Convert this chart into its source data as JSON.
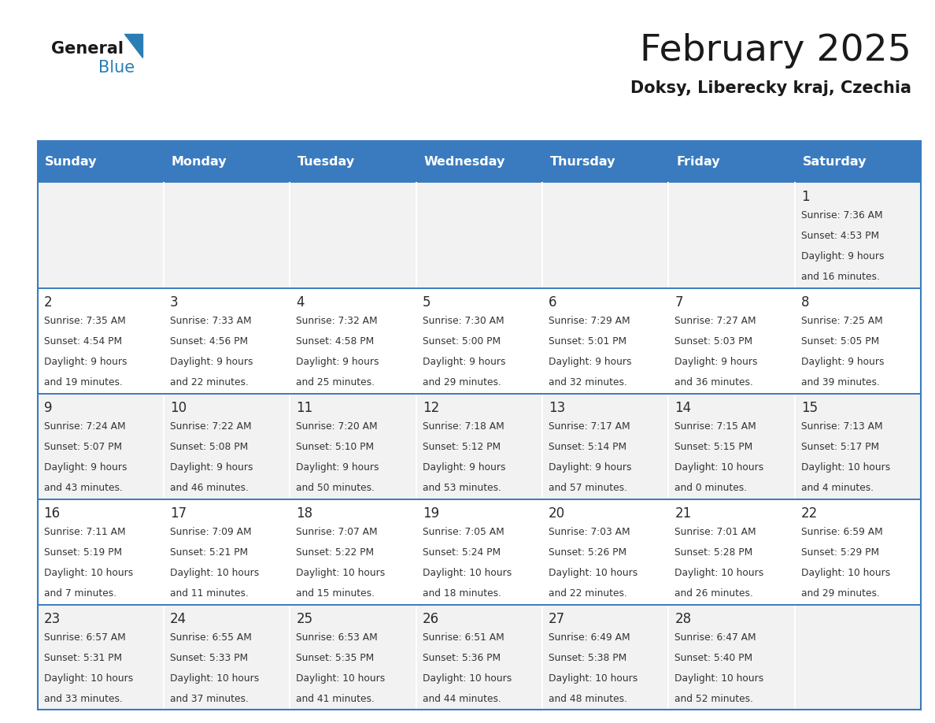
{
  "title": "February 2025",
  "subtitle": "Doksy, Liberecky kraj, Czechia",
  "header_color": "#3a7bbf",
  "header_text_color": "#ffffff",
  "days_of_week": [
    "Sunday",
    "Monday",
    "Tuesday",
    "Wednesday",
    "Thursday",
    "Friday",
    "Saturday"
  ],
  "bg_color": "#ffffff",
  "day_number_color": "#2a2a2a",
  "text_color": "#333333",
  "calendar_data": [
    [
      null,
      null,
      null,
      null,
      null,
      null,
      {
        "day": 1,
        "sunrise": "7:36 AM",
        "sunset": "4:53 PM",
        "daylight": "9 hours and 16 minutes."
      }
    ],
    [
      {
        "day": 2,
        "sunrise": "7:35 AM",
        "sunset": "4:54 PM",
        "daylight": "9 hours and 19 minutes."
      },
      {
        "day": 3,
        "sunrise": "7:33 AM",
        "sunset": "4:56 PM",
        "daylight": "9 hours and 22 minutes."
      },
      {
        "day": 4,
        "sunrise": "7:32 AM",
        "sunset": "4:58 PM",
        "daylight": "9 hours and 25 minutes."
      },
      {
        "day": 5,
        "sunrise": "7:30 AM",
        "sunset": "5:00 PM",
        "daylight": "9 hours and 29 minutes."
      },
      {
        "day": 6,
        "sunrise": "7:29 AM",
        "sunset": "5:01 PM",
        "daylight": "9 hours and 32 minutes."
      },
      {
        "day": 7,
        "sunrise": "7:27 AM",
        "sunset": "5:03 PM",
        "daylight": "9 hours and 36 minutes."
      },
      {
        "day": 8,
        "sunrise": "7:25 AM",
        "sunset": "5:05 PM",
        "daylight": "9 hours and 39 minutes."
      }
    ],
    [
      {
        "day": 9,
        "sunrise": "7:24 AM",
        "sunset": "5:07 PM",
        "daylight": "9 hours and 43 minutes."
      },
      {
        "day": 10,
        "sunrise": "7:22 AM",
        "sunset": "5:08 PM",
        "daylight": "9 hours and 46 minutes."
      },
      {
        "day": 11,
        "sunrise": "7:20 AM",
        "sunset": "5:10 PM",
        "daylight": "9 hours and 50 minutes."
      },
      {
        "day": 12,
        "sunrise": "7:18 AM",
        "sunset": "5:12 PM",
        "daylight": "9 hours and 53 minutes."
      },
      {
        "day": 13,
        "sunrise": "7:17 AM",
        "sunset": "5:14 PM",
        "daylight": "9 hours and 57 minutes."
      },
      {
        "day": 14,
        "sunrise": "7:15 AM",
        "sunset": "5:15 PM",
        "daylight": "10 hours and 0 minutes."
      },
      {
        "day": 15,
        "sunrise": "7:13 AM",
        "sunset": "5:17 PM",
        "daylight": "10 hours and 4 minutes."
      }
    ],
    [
      {
        "day": 16,
        "sunrise": "7:11 AM",
        "sunset": "5:19 PM",
        "daylight": "10 hours and 7 minutes."
      },
      {
        "day": 17,
        "sunrise": "7:09 AM",
        "sunset": "5:21 PM",
        "daylight": "10 hours and 11 minutes."
      },
      {
        "day": 18,
        "sunrise": "7:07 AM",
        "sunset": "5:22 PM",
        "daylight": "10 hours and 15 minutes."
      },
      {
        "day": 19,
        "sunrise": "7:05 AM",
        "sunset": "5:24 PM",
        "daylight": "10 hours and 18 minutes."
      },
      {
        "day": 20,
        "sunrise": "7:03 AM",
        "sunset": "5:26 PM",
        "daylight": "10 hours and 22 minutes."
      },
      {
        "day": 21,
        "sunrise": "7:01 AM",
        "sunset": "5:28 PM",
        "daylight": "10 hours and 26 minutes."
      },
      {
        "day": 22,
        "sunrise": "6:59 AM",
        "sunset": "5:29 PM",
        "daylight": "10 hours and 29 minutes."
      }
    ],
    [
      {
        "day": 23,
        "sunrise": "6:57 AM",
        "sunset": "5:31 PM",
        "daylight": "10 hours and 33 minutes."
      },
      {
        "day": 24,
        "sunrise": "6:55 AM",
        "sunset": "5:33 PM",
        "daylight": "10 hours and 37 minutes."
      },
      {
        "day": 25,
        "sunrise": "6:53 AM",
        "sunset": "5:35 PM",
        "daylight": "10 hours and 41 minutes."
      },
      {
        "day": 26,
        "sunrise": "6:51 AM",
        "sunset": "5:36 PM",
        "daylight": "10 hours and 44 minutes."
      },
      {
        "day": 27,
        "sunrise": "6:49 AM",
        "sunset": "5:38 PM",
        "daylight": "10 hours and 48 minutes."
      },
      {
        "day": 28,
        "sunrise": "6:47 AM",
        "sunset": "5:40 PM",
        "daylight": "10 hours and 52 minutes."
      },
      null
    ]
  ],
  "logo_blue_color": "#2a7db5",
  "separator_color": "#3a7bbf",
  "cell_bg_even": "#f2f2f2",
  "cell_bg_odd": "#ffffff"
}
